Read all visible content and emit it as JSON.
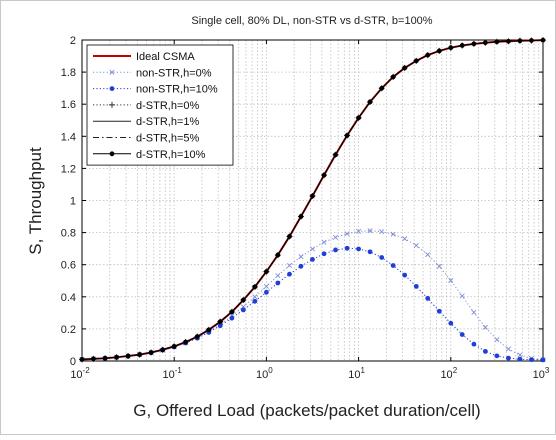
{
  "chart_data": {
    "type": "line",
    "title": "Single cell, 80% DL, non-STR vs d-STR, b=100%",
    "xlabel": "G, Offered Load (packets/packet duration/cell)",
    "ylabel": "S, Throughput",
    "xscale": "log",
    "xlim": [
      0.01,
      1000
    ],
    "ylim": [
      0,
      2
    ],
    "x_ticks": [
      0.01,
      0.1,
      1,
      10,
      100,
      1000
    ],
    "x_tick_bases": [
      "10",
      "10",
      "10",
      "10",
      "10",
      "10"
    ],
    "x_tick_exponents": [
      "-2",
      "-1",
      "0",
      "1",
      "2",
      "3"
    ],
    "y_ticks": [
      0,
      0.2,
      0.4,
      0.6,
      0.8,
      1,
      1.2,
      1.4,
      1.6,
      1.8,
      2
    ],
    "y_tick_labels": [
      "0",
      "0.2",
      "0.4",
      "0.6",
      "0.8",
      "1",
      "1.2",
      "1.4",
      "1.6",
      "1.8",
      "2"
    ],
    "grid": true,
    "legend_position": "top-left",
    "x": [
      0.01,
      0.0133,
      0.0178,
      0.0237,
      0.0316,
      0.0422,
      0.0562,
      0.075,
      0.1,
      0.133,
      0.178,
      0.237,
      0.316,
      0.422,
      0.562,
      0.75,
      1,
      1.33,
      1.78,
      2.37,
      3.16,
      4.22,
      5.62,
      7.5,
      10,
      13.3,
      17.8,
      23.7,
      31.6,
      42.2,
      56.2,
      75,
      100,
      133,
      178,
      237,
      316,
      422,
      562,
      750,
      1000
    ],
    "series": [
      {
        "name": "Ideal CSMA",
        "color": "#c00000",
        "style": "solid",
        "width": 2,
        "marker": "none",
        "values": [
          0.01,
          0.013,
          0.017,
          0.023,
          0.031,
          0.04,
          0.053,
          0.07,
          0.091,
          0.118,
          0.152,
          0.194,
          0.245,
          0.306,
          0.38,
          0.462,
          0.557,
          0.66,
          0.776,
          0.9,
          1.028,
          1.158,
          1.285,
          1.405,
          1.515,
          1.614,
          1.699,
          1.77,
          1.826,
          1.87,
          1.906,
          1.932,
          1.952,
          1.966,
          1.976,
          1.983,
          1.989,
          1.992,
          1.995,
          1.997,
          1.999
        ]
      },
      {
        "name": "non-STR,h=0%",
        "color": "#7f8ed6",
        "style": "dotted",
        "width": 1,
        "marker": "x",
        "values": [
          0.01,
          0.013,
          0.017,
          0.023,
          0.03,
          0.04,
          0.052,
          0.068,
          0.088,
          0.113,
          0.145,
          0.183,
          0.228,
          0.28,
          0.338,
          0.4,
          0.465,
          0.532,
          0.595,
          0.65,
          0.698,
          0.74,
          0.77,
          0.793,
          0.808,
          0.812,
          0.806,
          0.79,
          0.762,
          0.72,
          0.663,
          0.59,
          0.502,
          0.405,
          0.303,
          0.21,
          0.133,
          0.075,
          0.037,
          0.016,
          0.008
        ]
      },
      {
        "name": "non-STR,h=10%",
        "color": "#1f3fd6",
        "style": "dotted",
        "width": 1,
        "marker": "dot",
        "values": [
          0.01,
          0.013,
          0.017,
          0.023,
          0.03,
          0.04,
          0.052,
          0.068,
          0.088,
          0.112,
          0.142,
          0.178,
          0.22,
          0.267,
          0.318,
          0.372,
          0.428,
          0.486,
          0.541,
          0.59,
          0.633,
          0.668,
          0.692,
          0.702,
          0.698,
          0.68,
          0.645,
          0.595,
          0.535,
          0.465,
          0.39,
          0.31,
          0.235,
          0.165,
          0.105,
          0.06,
          0.032,
          0.018,
          0.011,
          0.008,
          0.007
        ]
      },
      {
        "name": "d-STR,h=0%",
        "color": "#333333",
        "style": "dotted",
        "width": 1,
        "marker": "plus",
        "values": [
          0.01,
          0.013,
          0.017,
          0.023,
          0.031,
          0.04,
          0.053,
          0.07,
          0.091,
          0.118,
          0.152,
          0.194,
          0.245,
          0.306,
          0.38,
          0.462,
          0.557,
          0.66,
          0.776,
          0.9,
          1.028,
          1.158,
          1.285,
          1.405,
          1.515,
          1.614,
          1.699,
          1.77,
          1.826,
          1.87,
          1.906,
          1.932,
          1.952,
          1.966,
          1.976,
          1.983,
          1.989,
          1.992,
          1.995,
          1.997,
          1.999
        ]
      },
      {
        "name": "d-STR,h=1%",
        "color": "#222222",
        "style": "solid",
        "width": 1,
        "marker": "none",
        "values": [
          0.01,
          0.013,
          0.017,
          0.023,
          0.031,
          0.04,
          0.053,
          0.07,
          0.091,
          0.118,
          0.152,
          0.194,
          0.245,
          0.306,
          0.38,
          0.462,
          0.557,
          0.66,
          0.776,
          0.9,
          1.028,
          1.158,
          1.285,
          1.405,
          1.515,
          1.614,
          1.699,
          1.77,
          1.826,
          1.87,
          1.906,
          1.932,
          1.952,
          1.966,
          1.976,
          1.983,
          1.989,
          1.992,
          1.995,
          1.997,
          1.999
        ]
      },
      {
        "name": "d-STR,h=5%",
        "color": "#222222",
        "style": "dashdot",
        "width": 1,
        "marker": "none",
        "values": [
          0.01,
          0.013,
          0.017,
          0.023,
          0.031,
          0.04,
          0.053,
          0.07,
          0.091,
          0.118,
          0.152,
          0.194,
          0.245,
          0.306,
          0.38,
          0.462,
          0.557,
          0.66,
          0.776,
          0.9,
          1.028,
          1.158,
          1.285,
          1.405,
          1.515,
          1.614,
          1.699,
          1.77,
          1.826,
          1.87,
          1.906,
          1.932,
          1.952,
          1.966,
          1.976,
          1.983,
          1.989,
          1.992,
          1.995,
          1.997,
          1.999
        ]
      },
      {
        "name": "d-STR,h=10%",
        "color": "#000000",
        "style": "solid",
        "width": 1,
        "marker": "dot",
        "values": [
          0.01,
          0.013,
          0.017,
          0.023,
          0.031,
          0.04,
          0.053,
          0.07,
          0.091,
          0.118,
          0.152,
          0.194,
          0.245,
          0.306,
          0.38,
          0.462,
          0.557,
          0.66,
          0.776,
          0.9,
          1.028,
          1.158,
          1.285,
          1.405,
          1.515,
          1.614,
          1.699,
          1.77,
          1.826,
          1.87,
          1.906,
          1.932,
          1.952,
          1.966,
          1.976,
          1.983,
          1.989,
          1.992,
          1.995,
          1.997,
          1.999
        ]
      }
    ]
  }
}
